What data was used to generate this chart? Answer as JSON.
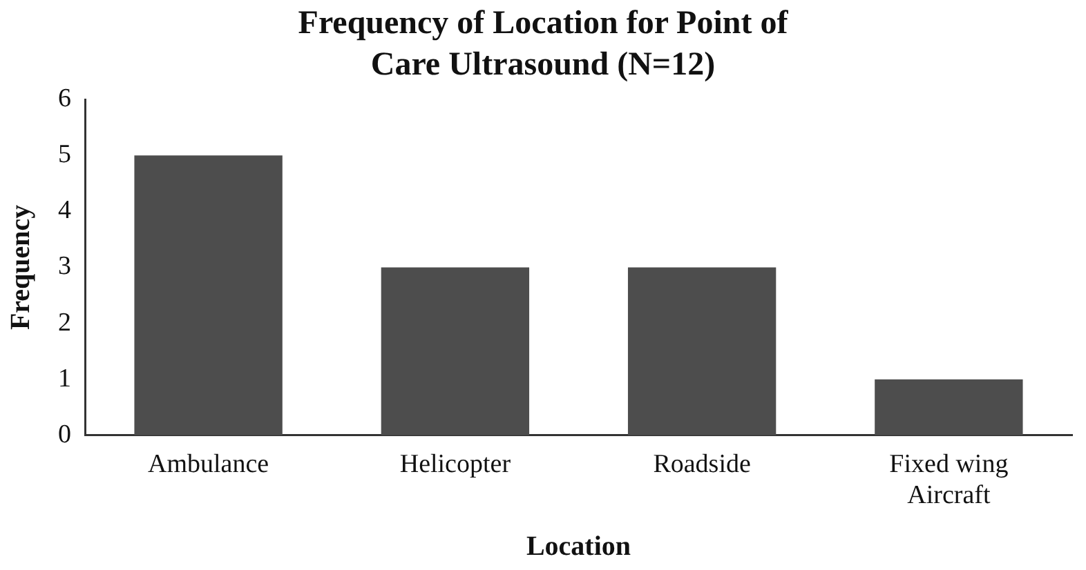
{
  "chart_data": {
    "type": "bar",
    "title": "Frequency of Location for Point of Care Ultrasound (N=12)",
    "xlabel": "Location",
    "ylabel": "Frequency",
    "categories": [
      "Ambulance",
      "Helicopter",
      "Roadside",
      "Fixed wing Aircraft"
    ],
    "values": [
      5,
      3,
      3,
      1
    ],
    "color": "#4d4d4d",
    "ylim": [
      0,
      6
    ],
    "yticks": [
      0,
      1,
      2,
      3,
      4,
      5,
      6
    ],
    "grid": false,
    "legend": false
  }
}
